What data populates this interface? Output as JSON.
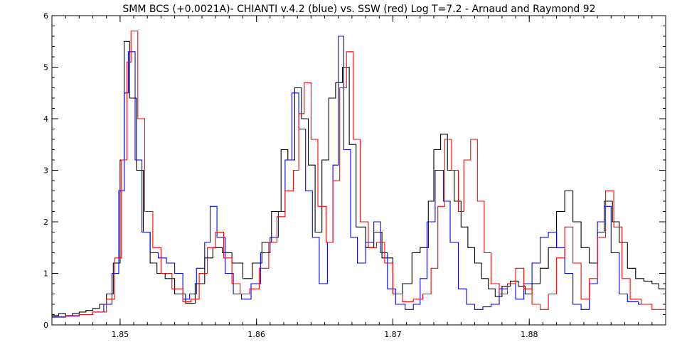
{
  "chart_data": {
    "type": "line",
    "title": "SMM BCS (+0.0021A)- CHIANTI v.4.2 (blue) vs. SSW (red) Log T=7.2 - Arnaud and Raymond 92",
    "xlabel": "",
    "ylabel": "",
    "xlim": [
      1.845,
      1.89
    ],
    "ylim": [
      0,
      6
    ],
    "x_ticks": [
      1.85,
      1.86,
      1.87,
      1.88
    ],
    "y_ticks": [
      0,
      1,
      2,
      3,
      4,
      5,
      6
    ],
    "x_tick_labels": [
      "1.85",
      "1.86",
      "1.87",
      "1.88"
    ],
    "y_tick_labels": [
      "0",
      "1",
      "2",
      "3",
      "4",
      "5",
      "6"
    ],
    "line_style": "step",
    "grid": false,
    "series": [
      {
        "color": "#000000",
        "points": [
          [
            1.845,
            0.18
          ],
          [
            1.8455,
            0.22
          ],
          [
            1.846,
            0.18
          ],
          [
            1.8465,
            0.22
          ],
          [
            1.847,
            0.25
          ],
          [
            1.8475,
            0.28
          ],
          [
            1.848,
            0.32
          ],
          [
            1.8485,
            0.4
          ],
          [
            1.849,
            0.6
          ],
          [
            1.8495,
            1.2
          ],
          [
            1.85,
            3.2
          ],
          [
            1.8503,
            5.5
          ],
          [
            1.8507,
            4.4
          ],
          [
            1.8512,
            3.0
          ],
          [
            1.8517,
            1.8
          ],
          [
            1.8522,
            1.2
          ],
          [
            1.8527,
            1.0
          ],
          [
            1.8533,
            0.9
          ],
          [
            1.854,
            0.6
          ],
          [
            1.8548,
            0.42
          ],
          [
            1.8555,
            0.8
          ],
          [
            1.8562,
            1.3
          ],
          [
            1.8568,
            1.5
          ],
          [
            1.8575,
            1.4
          ],
          [
            1.8582,
            1.2
          ],
          [
            1.859,
            0.9
          ],
          [
            1.8597,
            1.2
          ],
          [
            1.8604,
            1.6
          ],
          [
            1.8611,
            2.2
          ],
          [
            1.8618,
            3.4
          ],
          [
            1.8623,
            3.2
          ],
          [
            1.8628,
            4.6
          ],
          [
            1.8633,
            4.0
          ],
          [
            1.8638,
            3.1
          ],
          [
            1.8643,
            1.8
          ],
          [
            1.8648,
            3.2
          ],
          [
            1.8653,
            4.4
          ],
          [
            1.8658,
            4.7
          ],
          [
            1.8663,
            5.0
          ],
          [
            1.8668,
            3.5
          ],
          [
            1.8673,
            1.9
          ],
          [
            1.868,
            1.5
          ],
          [
            1.8686,
            1.8
          ],
          [
            1.8692,
            1.3
          ],
          [
            1.87,
            0.6
          ],
          [
            1.8707,
            0.8
          ],
          [
            1.8714,
            1.4
          ],
          [
            1.872,
            1.5
          ],
          [
            1.8726,
            2.4
          ],
          [
            1.873,
            3.4
          ],
          [
            1.8735,
            3.7
          ],
          [
            1.874,
            3.0
          ],
          [
            1.8745,
            2.4
          ],
          [
            1.875,
            1.9
          ],
          [
            1.8755,
            1.5
          ],
          [
            1.876,
            1.2
          ],
          [
            1.8765,
            0.9
          ],
          [
            1.877,
            0.7
          ],
          [
            1.8775,
            0.55
          ],
          [
            1.878,
            0.75
          ],
          [
            1.8786,
            0.85
          ],
          [
            1.8792,
            0.75
          ],
          [
            1.8797,
            0.6
          ],
          [
            1.8802,
            0.8
          ],
          [
            1.8808,
            1.1
          ],
          [
            1.8814,
            1.5
          ],
          [
            1.882,
            2.2
          ],
          [
            1.8826,
            2.6
          ],
          [
            1.8832,
            2.0
          ],
          [
            1.8838,
            1.5
          ],
          [
            1.8844,
            1.2
          ],
          [
            1.885,
            1.8
          ],
          [
            1.8855,
            2.4
          ],
          [
            1.8861,
            2.0
          ],
          [
            1.8866,
            1.6
          ],
          [
            1.8872,
            1.1
          ],
          [
            1.8878,
            0.9
          ],
          [
            1.8884,
            0.85
          ],
          [
            1.889,
            0.8
          ],
          [
            1.8895,
            0.7
          ],
          [
            1.89,
            0.45
          ]
        ]
      },
      {
        "color": "#0000ff",
        "points": [
          [
            1.845,
            0.15
          ],
          [
            1.846,
            0.17
          ],
          [
            1.847,
            0.2
          ],
          [
            1.848,
            0.25
          ],
          [
            1.8488,
            0.4
          ],
          [
            1.8494,
            1.0
          ],
          [
            1.8499,
            2.6
          ],
          [
            1.8503,
            4.5
          ],
          [
            1.8506,
            5.3
          ],
          [
            1.8511,
            3.2
          ],
          [
            1.8516,
            1.8
          ],
          [
            1.8522,
            1.4
          ],
          [
            1.8528,
            1.3
          ],
          [
            1.8534,
            1.2
          ],
          [
            1.854,
            1.0
          ],
          [
            1.8546,
            0.5
          ],
          [
            1.8551,
            0.6
          ],
          [
            1.8556,
            1.1
          ],
          [
            1.8562,
            1.6
          ],
          [
            1.8566,
            2.3
          ],
          [
            1.8571,
            1.7
          ],
          [
            1.8577,
            1.0
          ],
          [
            1.8583,
            0.6
          ],
          [
            1.8589,
            0.5
          ],
          [
            1.8596,
            0.8
          ],
          [
            1.8603,
            1.4
          ],
          [
            1.861,
            1.7
          ],
          [
            1.8616,
            2.2
          ],
          [
            1.8621,
            3.2
          ],
          [
            1.8626,
            4.5
          ],
          [
            1.8631,
            3.8
          ],
          [
            1.8636,
            2.6
          ],
          [
            1.8641,
            1.7
          ],
          [
            1.8646,
            0.8
          ],
          [
            1.8652,
            1.6
          ],
          [
            1.8656,
            3.1
          ],
          [
            1.866,
            5.6
          ],
          [
            1.8664,
            3.4
          ],
          [
            1.8669,
            1.7
          ],
          [
            1.8674,
            1.2
          ],
          [
            1.868,
            1.6
          ],
          [
            1.8686,
            2.0
          ],
          [
            1.8691,
            1.4
          ],
          [
            1.8696,
            0.7
          ],
          [
            1.8702,
            0.4
          ],
          [
            1.8709,
            0.3
          ],
          [
            1.8715,
            0.4
          ],
          [
            1.872,
            0.9
          ],
          [
            1.8725,
            2.0
          ],
          [
            1.8731,
            3.0
          ],
          [
            1.8737,
            2.4
          ],
          [
            1.8742,
            1.6
          ],
          [
            1.8748,
            0.7
          ],
          [
            1.8754,
            0.4
          ],
          [
            1.876,
            0.3
          ],
          [
            1.8766,
            0.35
          ],
          [
            1.8772,
            0.4
          ],
          [
            1.8778,
            0.7
          ],
          [
            1.8784,
            0.8
          ],
          [
            1.879,
            0.5
          ],
          [
            1.8796,
            0.8
          ],
          [
            1.8802,
            1.2
          ],
          [
            1.8808,
            1.7
          ],
          [
            1.8814,
            1.8
          ],
          [
            1.882,
            1.5
          ],
          [
            1.8826,
            1.0
          ],
          [
            1.8832,
            0.4
          ],
          [
            1.8838,
            0.3
          ],
          [
            1.8844,
            0.8
          ],
          [
            1.885,
            2.0
          ],
          [
            1.8855,
            2.3
          ],
          [
            1.886,
            1.4
          ],
          [
            1.8866,
            0.6
          ],
          [
            1.8872,
            0.45
          ],
          [
            1.888,
            0.4
          ]
        ]
      },
      {
        "color": "#ff0000",
        "points": [
          [
            1.845,
            0.16
          ],
          [
            1.846,
            0.18
          ],
          [
            1.847,
            0.2
          ],
          [
            1.848,
            0.25
          ],
          [
            1.849,
            0.5
          ],
          [
            1.8496,
            1.3
          ],
          [
            1.8501,
            3.2
          ],
          [
            1.8505,
            5.1
          ],
          [
            1.8508,
            5.7
          ],
          [
            1.8513,
            4.0
          ],
          [
            1.8518,
            2.2
          ],
          [
            1.8524,
            1.5
          ],
          [
            1.853,
            1.0
          ],
          [
            1.8538,
            0.7
          ],
          [
            1.8546,
            0.45
          ],
          [
            1.8552,
            0.5
          ],
          [
            1.8558,
            1.0
          ],
          [
            1.8564,
            1.5
          ],
          [
            1.857,
            1.8
          ],
          [
            1.8576,
            1.3
          ],
          [
            1.8582,
            0.8
          ],
          [
            1.8588,
            0.6
          ],
          [
            1.8595,
            0.7
          ],
          [
            1.8602,
            1.1
          ],
          [
            1.8609,
            1.6
          ],
          [
            1.8615,
            2.1
          ],
          [
            1.8621,
            2.6
          ],
          [
            1.8627,
            3.0
          ],
          [
            1.8631,
            4.1
          ],
          [
            1.8635,
            4.7
          ],
          [
            1.864,
            3.6
          ],
          [
            1.8645,
            2.3
          ],
          [
            1.8651,
            1.6
          ],
          [
            1.8656,
            2.8
          ],
          [
            1.8661,
            4.6
          ],
          [
            1.8666,
            5.3
          ],
          [
            1.8671,
            3.6
          ],
          [
            1.8676,
            2.0
          ],
          [
            1.8682,
            1.5
          ],
          [
            1.8688,
            1.6
          ],
          [
            1.8694,
            1.2
          ],
          [
            1.87,
            0.6
          ],
          [
            1.8707,
            0.45
          ],
          [
            1.8715,
            0.5
          ],
          [
            1.8722,
            0.6
          ],
          [
            1.8728,
            1.1
          ],
          [
            1.8733,
            2.3
          ],
          [
            1.8738,
            3.6
          ],
          [
            1.8743,
            3.0
          ],
          [
            1.8748,
            2.2
          ],
          [
            1.8752,
            3.2
          ],
          [
            1.8757,
            3.6
          ],
          [
            1.8762,
            2.4
          ],
          [
            1.8767,
            1.4
          ],
          [
            1.8772,
            0.8
          ],
          [
            1.8778,
            0.6
          ],
          [
            1.8784,
            0.8
          ],
          [
            1.879,
            1.1
          ],
          [
            1.8796,
            0.7
          ],
          [
            1.8802,
            0.4
          ],
          [
            1.8808,
            0.3
          ],
          [
            1.8814,
            0.6
          ],
          [
            1.882,
            1.3
          ],
          [
            1.8826,
            1.9
          ],
          [
            1.8832,
            1.2
          ],
          [
            1.8838,
            0.5
          ],
          [
            1.8844,
            0.9
          ],
          [
            1.885,
            1.7
          ],
          [
            1.8856,
            2.6
          ],
          [
            1.8862,
            1.9
          ],
          [
            1.8868,
            0.9
          ],
          [
            1.8874,
            0.5
          ],
          [
            1.8882,
            0.4
          ],
          [
            1.889,
            0.3
          ],
          [
            1.89,
            0.2
          ]
        ]
      }
    ]
  }
}
